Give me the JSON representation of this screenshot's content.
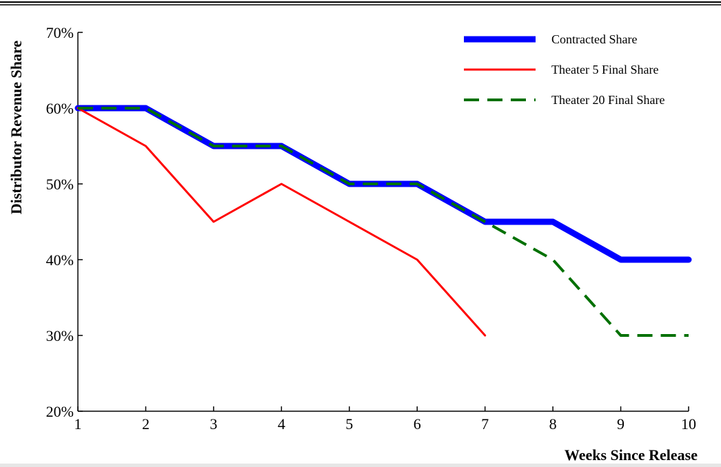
{
  "chart_data": {
    "type": "line",
    "title": "",
    "xlabel": "Weeks Since Release",
    "ylabel": "Distributor Revenue Share",
    "xlim": [
      1,
      10
    ],
    "ylim": [
      20,
      70
    ],
    "x_ticks": [
      "1",
      "2",
      "3",
      "4",
      "5",
      "6",
      "7",
      "8",
      "9",
      "10"
    ],
    "y_ticks": [
      {
        "value": 20,
        "label": "20%"
      },
      {
        "value": 30,
        "label": "30%"
      },
      {
        "value": 40,
        "label": "40%"
      },
      {
        "value": 50,
        "label": "50%"
      },
      {
        "value": 60,
        "label": "60%"
      },
      {
        "value": 70,
        "label": "70%"
      }
    ],
    "grid": false,
    "legend_position": "top-right",
    "series": [
      {
        "name": "Contracted Share",
        "color": "#0000ff",
        "style": "solid-thick",
        "points": [
          [
            1,
            60
          ],
          [
            2,
            60
          ],
          [
            3,
            55
          ],
          [
            4,
            55
          ],
          [
            5,
            50
          ],
          [
            6,
            50
          ],
          [
            7,
            45
          ],
          [
            8,
            45
          ],
          [
            9,
            40
          ],
          [
            10,
            40
          ]
        ]
      },
      {
        "name": "Theater 5 Final Share",
        "color": "#ff0000",
        "style": "solid",
        "points": [
          [
            1,
            60
          ],
          [
            2,
            55
          ],
          [
            3,
            45
          ],
          [
            4,
            50
          ],
          [
            5,
            45
          ],
          [
            6,
            40
          ],
          [
            7,
            30
          ]
        ]
      },
      {
        "name": "Theater 20 Final Share",
        "color": "#007000",
        "style": "dashed",
        "points": [
          [
            1,
            60
          ],
          [
            2,
            60
          ],
          [
            3,
            55
          ],
          [
            4,
            55
          ],
          [
            5,
            50
          ],
          [
            6,
            50
          ],
          [
            7,
            45
          ],
          [
            8,
            40
          ],
          [
            9,
            30
          ],
          [
            10,
            30
          ]
        ]
      }
    ]
  }
}
